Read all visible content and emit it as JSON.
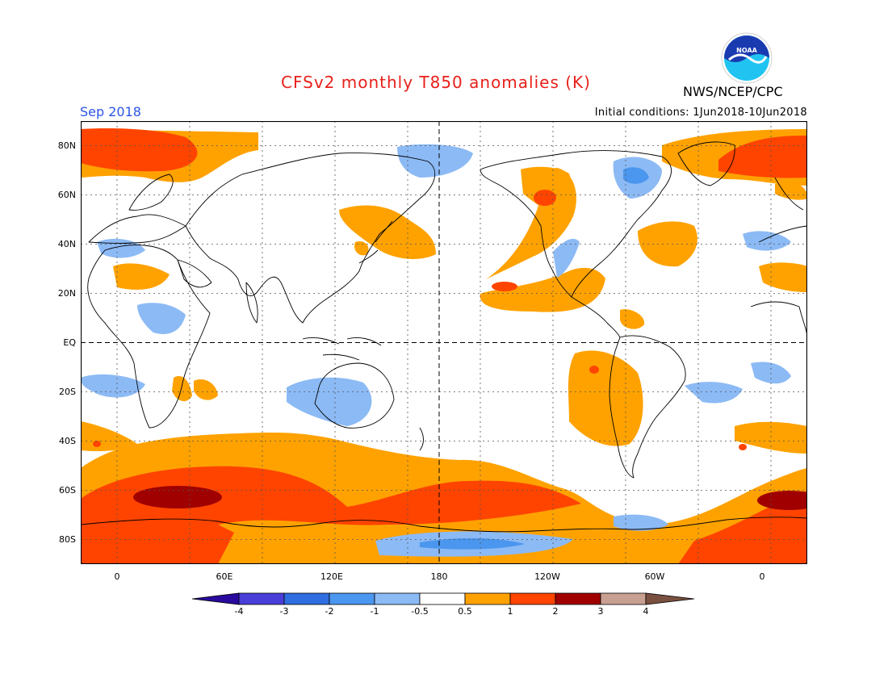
{
  "header": {
    "title": "CFSv2 monthly T850 anomalies (K)",
    "org": "NWS/NCEP/CPC",
    "month": "Sep 2018",
    "initial_conditions": "Initial conditions: 1Jun2018-10Jun2018",
    "logo_text": "NOAA"
  },
  "map": {
    "lat_labels": [
      "80N",
      "60N",
      "40N",
      "20N",
      "EQ",
      "20S",
      "40S",
      "60S",
      "80S"
    ],
    "lon_labels": [
      "0",
      "60E",
      "120E",
      "180",
      "120W",
      "60W",
      "0"
    ],
    "projection": "cylindrical equidistant, 20W to 20E (wrapping), 90S to 90N",
    "grid": "dotted at 20 degrees latitude, 30 degrees longitude; dashed equator and dateline"
  },
  "legend": {
    "labels": [
      "-4",
      "-3",
      "-2",
      "-1",
      "-0.5",
      "0.5",
      "1",
      "2",
      "3",
      "4"
    ],
    "colors": [
      "#2a0a9e",
      "#4a3ed8",
      "#2e6ee0",
      "#4b96ee",
      "#8cbaf5",
      "#ffffff",
      "#ffa200",
      "#ff4400",
      "#a00000",
      "#c8a091",
      "#7a5040"
    ]
  },
  "colors": {
    "title": "#e8201a",
    "month": "#2c55e8",
    "light_blue": "#8cbaf5",
    "mid_blue": "#4b96ee",
    "orange": "#ffa200",
    "red_orange": "#ff4400",
    "dark_red": "#a00000"
  }
}
